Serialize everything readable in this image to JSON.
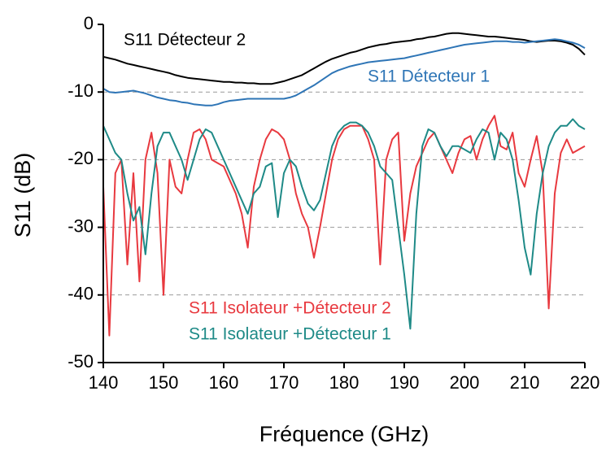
{
  "chart_data": {
    "type": "line",
    "xlabel": "Fréquence (GHz)",
    "ylabel": "S11 (dB)",
    "xlim": [
      140,
      220
    ],
    "xticks": [
      140,
      150,
      160,
      170,
      180,
      190,
      200,
      210,
      220
    ],
    "ylim": [
      -50,
      0
    ],
    "yticks": [
      0,
      -10,
      -20,
      -30,
      -40,
      -50
    ],
    "grid": true,
    "x": [
      140,
      141,
      142,
      143,
      144,
      145,
      146,
      147,
      148,
      149,
      150,
      151,
      152,
      153,
      154,
      155,
      156,
      157,
      158,
      159,
      160,
      161,
      162,
      163,
      164,
      165,
      166,
      167,
      168,
      169,
      170,
      171,
      172,
      173,
      174,
      175,
      176,
      177,
      178,
      179,
      180,
      181,
      182,
      183,
      184,
      185,
      186,
      187,
      188,
      189,
      190,
      191,
      192,
      193,
      194,
      195,
      196,
      197,
      198,
      199,
      200,
      201,
      202,
      203,
      204,
      205,
      206,
      207,
      208,
      209,
      210,
      211,
      212,
      213,
      214,
      215,
      216,
      217,
      218,
      219,
      220
    ],
    "series": [
      {
        "name": "S11 Détecteur 2",
        "color": "#000000",
        "values": [
          -4.8,
          -5.0,
          -5.2,
          -5.5,
          -5.8,
          -6.0,
          -6.2,
          -6.4,
          -6.6,
          -6.8,
          -7.0,
          -7.2,
          -7.5,
          -7.7,
          -7.9,
          -8.0,
          -8.1,
          -8.2,
          -8.3,
          -8.4,
          -8.5,
          -8.5,
          -8.6,
          -8.6,
          -8.7,
          -8.7,
          -8.8,
          -8.8,
          -8.8,
          -8.6,
          -8.4,
          -8.1,
          -7.8,
          -7.5,
          -7.0,
          -6.5,
          -6.0,
          -5.5,
          -5.1,
          -4.8,
          -4.5,
          -4.2,
          -4.0,
          -3.7,
          -3.4,
          -3.2,
          -3.0,
          -2.9,
          -2.7,
          -2.6,
          -2.5,
          -2.4,
          -2.2,
          -2.1,
          -1.9,
          -1.8,
          -1.6,
          -1.4,
          -1.3,
          -1.3,
          -1.4,
          -1.5,
          -1.6,
          -1.7,
          -1.8,
          -1.8,
          -1.9,
          -2.0,
          -2.1,
          -2.2,
          -2.3,
          -2.5,
          -2.6,
          -2.5,
          -2.4,
          -2.4,
          -2.5,
          -2.7,
          -3.0,
          -3.6,
          -4.5
        ]
      },
      {
        "name": "S11 Détecteur 1",
        "color": "#2e75b6",
        "values": [
          -9.5,
          -10.0,
          -10.1,
          -10.0,
          -9.9,
          -9.8,
          -10.0,
          -10.2,
          -10.5,
          -10.8,
          -11.0,
          -11.2,
          -11.3,
          -11.5,
          -11.6,
          -11.8,
          -11.9,
          -12.0,
          -12.0,
          -11.8,
          -11.5,
          -11.3,
          -11.2,
          -11.1,
          -11.0,
          -11.0,
          -11.0,
          -11.0,
          -11.0,
          -11.0,
          -11.0,
          -10.8,
          -10.5,
          -10.0,
          -9.5,
          -9.0,
          -8.4,
          -7.8,
          -7.2,
          -6.8,
          -6.5,
          -6.2,
          -6.0,
          -5.8,
          -5.6,
          -5.5,
          -5.4,
          -5.3,
          -5.2,
          -5.1,
          -5.0,
          -4.8,
          -4.6,
          -4.4,
          -4.2,
          -4.0,
          -3.8,
          -3.6,
          -3.4,
          -3.2,
          -3.0,
          -2.9,
          -2.8,
          -2.7,
          -2.6,
          -2.5,
          -2.5,
          -2.5,
          -2.6,
          -2.6,
          -2.7,
          -2.6,
          -2.5,
          -2.4,
          -2.3,
          -2.2,
          -2.3,
          -2.5,
          -2.7,
          -3.0,
          -3.5
        ]
      },
      {
        "name": "S11 Isolateur +Détecteur 2",
        "color": "#e8393f",
        "values": [
          -24,
          -46,
          -22,
          -20,
          -35.5,
          -22,
          -38,
          -20,
          -16,
          -22,
          -40,
          -20,
          -24,
          -25,
          -20,
          -16,
          -15.5,
          -17,
          -20,
          -20.5,
          -21,
          -23,
          -25,
          -28,
          -33,
          -24,
          -20,
          -17,
          -15.5,
          -16,
          -17,
          -20,
          -25,
          -28,
          -30,
          -34.5,
          -30,
          -25,
          -20,
          -17,
          -15.5,
          -15,
          -15,
          -15,
          -17,
          -20,
          -35.5,
          -20,
          -17,
          -16,
          -32,
          -25,
          -21,
          -19,
          -17,
          -16,
          -18,
          -20,
          -22,
          -19,
          -17,
          -16.5,
          -20,
          -17,
          -15,
          -13.5,
          -18,
          -18.5,
          -16,
          -22,
          -24,
          -20,
          -16.5,
          -22,
          -42,
          -25,
          -19,
          -17,
          -19,
          -18.5,
          -18
        ]
      },
      {
        "name": "S11 Isolateur +Détecteur 1",
        "color": "#1e8a87",
        "values": [
          -15,
          -17,
          -19,
          -20,
          -25,
          -29,
          -27,
          -34,
          -25,
          -18,
          -16,
          -16,
          -18,
          -20,
          -23,
          -20,
          -17,
          -15.5,
          -16,
          -18,
          -20,
          -22,
          -24,
          -26,
          -28,
          -25,
          -24,
          -21,
          -20.5,
          -28.5,
          -22,
          -20,
          -21,
          -24,
          -26.5,
          -27.5,
          -26,
          -22,
          -18,
          -16,
          -15,
          -14.5,
          -14.5,
          -15,
          -16,
          -18,
          -21,
          -22,
          -23,
          -30,
          -37,
          -45,
          -28,
          -18,
          -15.5,
          -16,
          -18,
          -19.5,
          -18,
          -18,
          -18.5,
          -19,
          -17,
          -15.5,
          -16,
          -20,
          -16,
          -17,
          -20,
          -26,
          -33,
          -37,
          -28,
          -22,
          -18,
          -16,
          -15,
          -15,
          -14,
          -15,
          -15.5
        ]
      }
    ]
  }
}
